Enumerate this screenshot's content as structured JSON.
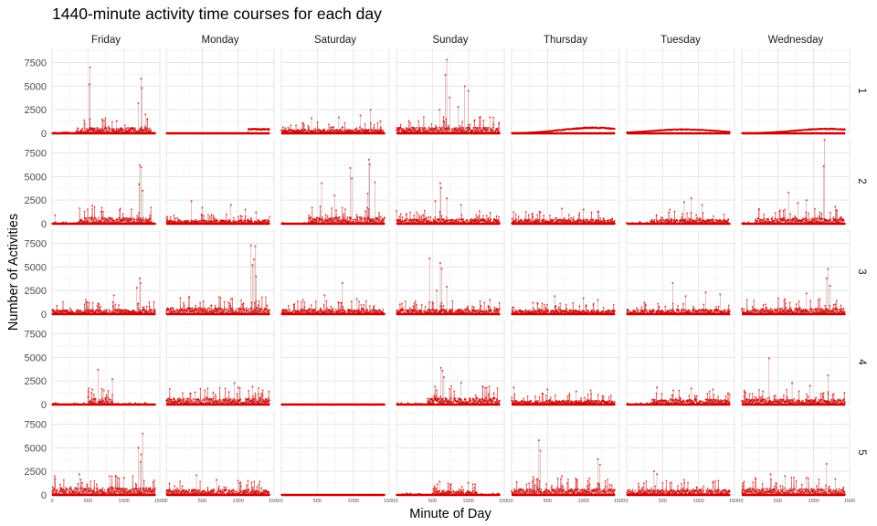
{
  "chart_data": {
    "type": "scatter",
    "title": "1440-minute activity time courses for each day",
    "xlabel": "Minute of Day",
    "ylabel": "Number of Activities",
    "xlim": [
      0,
      1500
    ],
    "ylim": [
      0,
      9000
    ],
    "x_ticks": [
      0,
      500,
      1000,
      1500
    ],
    "y_ticks": [
      0,
      2500,
      5000,
      7500
    ],
    "y_tick_labels": [
      "0",
      "2500",
      "5000",
      "7500"
    ],
    "grid": true,
    "point_color": "#cc0000",
    "columns": [
      "Friday",
      "Monday",
      "Saturday",
      "Sunday",
      "Thursday",
      "Tuesday",
      "Wednesday"
    ],
    "rows": [
      "1",
      "2",
      "3",
      "4",
      "5"
    ],
    "panels": [
      {
        "row": "1",
        "col": "Friday",
        "kind": "active",
        "onset": 330,
        "offset": 1380,
        "base": 350,
        "spikes": [
          [
            530,
            7000
          ],
          [
            520,
            5200
          ],
          [
            1240,
            5800
          ],
          [
            1250,
            4800
          ],
          [
            1200,
            3200
          ],
          [
            1300,
            2000
          ],
          [
            700,
            1500
          ],
          [
            900,
            1300
          ]
        ]
      },
      {
        "row": "1",
        "col": "Monday",
        "kind": "flat",
        "level": 0,
        "rise_start": 1140,
        "rise_level": 450
      },
      {
        "row": "1",
        "col": "Saturday",
        "kind": "active",
        "onset": 0,
        "offset": 1440,
        "base": 250,
        "spikes": [
          [
            1240,
            2500
          ],
          [
            420,
            1600
          ],
          [
            800,
            1700
          ],
          [
            1100,
            1900
          ],
          [
            1380,
            1300
          ]
        ]
      },
      {
        "row": "1",
        "col": "Sunday",
        "kind": "active",
        "onset": 0,
        "offset": 1440,
        "base": 380,
        "spikes": [
          [
            700,
            7800
          ],
          [
            680,
            6200
          ],
          [
            950,
            5000
          ],
          [
            1000,
            4500
          ],
          [
            740,
            3800
          ],
          [
            860,
            2800
          ],
          [
            600,
            2500
          ],
          [
            1300,
            1700
          ]
        ]
      },
      {
        "row": "1",
        "col": "Thursday",
        "kind": "smooth",
        "peak": 600,
        "peak_at": 1150
      },
      {
        "row": "1",
        "col": "Tuesday",
        "kind": "smooth",
        "peak": 420,
        "peak_at": 800
      },
      {
        "row": "1",
        "col": "Wednesday",
        "kind": "smooth",
        "peak": 480,
        "peak_at": 1200
      },
      {
        "row": "2",
        "col": "Friday",
        "kind": "active",
        "onset": 380,
        "offset": 1380,
        "base": 380,
        "spikes": [
          [
            1220,
            6200
          ],
          [
            1240,
            6000
          ],
          [
            1210,
            4200
          ],
          [
            1260,
            3500
          ],
          [
            560,
            1900
          ],
          [
            950,
            1600
          ],
          [
            40,
            900
          ]
        ]
      },
      {
        "row": "2",
        "col": "Monday",
        "kind": "active",
        "onset": 0,
        "offset": 1440,
        "base": 220,
        "spikes": [
          [
            350,
            2400
          ],
          [
            900,
            2000
          ],
          [
            500,
            1700
          ],
          [
            1100,
            1500
          ],
          [
            1250,
            1200
          ]
        ]
      },
      {
        "row": "2",
        "col": "Saturday",
        "kind": "active",
        "onset": 380,
        "offset": 1440,
        "base": 420,
        "spikes": [
          [
            1220,
            6800
          ],
          [
            1230,
            6300
          ],
          [
            960,
            5900
          ],
          [
            980,
            4800
          ],
          [
            560,
            4300
          ],
          [
            1300,
            4400
          ],
          [
            740,
            3000
          ],
          [
            1200,
            3200
          ]
        ]
      },
      {
        "row": "2",
        "col": "Sunday",
        "kind": "active",
        "onset": 0,
        "offset": 1440,
        "base": 300,
        "spikes": [
          [
            610,
            4300
          ],
          [
            620,
            3800
          ],
          [
            700,
            2700
          ],
          [
            540,
            2400
          ],
          [
            900,
            2000
          ]
        ]
      },
      {
        "row": "2",
        "col": "Thursday",
        "kind": "active",
        "onset": 0,
        "offset": 1440,
        "base": 280,
        "spikes": [
          [
            700,
            1600
          ],
          [
            1000,
            1500
          ],
          [
            1200,
            1300
          ],
          [
            400,
            1200
          ]
        ]
      },
      {
        "row": "2",
        "col": "Tuesday",
        "kind": "active",
        "onset": 320,
        "offset": 1420,
        "base": 280,
        "spikes": [
          [
            900,
            2700
          ],
          [
            800,
            2300
          ],
          [
            1050,
            2000
          ],
          [
            600,
            1500
          ]
        ]
      },
      {
        "row": "2",
        "col": "Wednesday",
        "kind": "active",
        "onset": 180,
        "offset": 1420,
        "base": 350,
        "spikes": [
          [
            1150,
            8900
          ],
          [
            1140,
            6100
          ],
          [
            650,
            3300
          ],
          [
            900,
            2500
          ],
          [
            780,
            2200
          ],
          [
            1300,
            1800
          ]
        ]
      },
      {
        "row": "3",
        "col": "Friday",
        "kind": "active",
        "onset": 0,
        "offset": 1440,
        "base": 300,
        "spikes": [
          [
            1220,
            3800
          ],
          [
            1230,
            3300
          ],
          [
            1180,
            2800
          ],
          [
            860,
            2000
          ],
          [
            470,
            1500
          ]
        ]
      },
      {
        "row": "3",
        "col": "Monday",
        "kind": "active",
        "onset": 0,
        "offset": 1440,
        "base": 400,
        "spikes": [
          [
            1180,
            7300
          ],
          [
            1240,
            7200
          ],
          [
            1220,
            5800
          ],
          [
            1200,
            5200
          ],
          [
            1250,
            4000
          ],
          [
            320,
            1800
          ],
          [
            900,
            1600
          ]
        ]
      },
      {
        "row": "3",
        "col": "Saturday",
        "kind": "active",
        "onset": 0,
        "offset": 1440,
        "base": 300,
        "spikes": [
          [
            850,
            3300
          ],
          [
            600,
            2000
          ],
          [
            1050,
            1600
          ],
          [
            300,
            1500
          ]
        ]
      },
      {
        "row": "3",
        "col": "Sunday",
        "kind": "active",
        "onset": 0,
        "offset": 1440,
        "base": 300,
        "spikes": [
          [
            460,
            5900
          ],
          [
            610,
            5400
          ],
          [
            630,
            4800
          ],
          [
            700,
            2900
          ],
          [
            560,
            2500
          ],
          [
            1300,
            1500
          ]
        ]
      },
      {
        "row": "3",
        "col": "Thursday",
        "kind": "active",
        "onset": 0,
        "offset": 1440,
        "base": 260,
        "spikes": [
          [
            600,
            1900
          ],
          [
            1000,
            1700
          ],
          [
            1200,
            1500
          ],
          [
            300,
            1200
          ]
        ]
      },
      {
        "row": "3",
        "col": "Tuesday",
        "kind": "active",
        "onset": 0,
        "offset": 1440,
        "base": 300,
        "spikes": [
          [
            640,
            3300
          ],
          [
            1100,
            2300
          ],
          [
            1300,
            2100
          ],
          [
            820,
            1900
          ]
        ]
      },
      {
        "row": "3",
        "col": "Wednesday",
        "kind": "active",
        "onset": 0,
        "offset": 1440,
        "base": 360,
        "spikes": [
          [
            1200,
            4800
          ],
          [
            1180,
            3800
          ],
          [
            1230,
            3000
          ],
          [
            900,
            2200
          ],
          [
            600,
            1600
          ]
        ]
      },
      {
        "row": "4",
        "col": "Friday",
        "kind": "active",
        "onset": 500,
        "offset": 840,
        "base": 420,
        "spikes": [
          [
            640,
            3700
          ],
          [
            840,
            2700
          ],
          [
            560,
            1600
          ],
          [
            720,
            1500
          ]
        ]
      },
      {
        "row": "4",
        "col": "Monday",
        "kind": "active",
        "onset": 0,
        "offset": 1440,
        "base": 380,
        "spikes": [
          [
            950,
            2300
          ],
          [
            1200,
            1900
          ],
          [
            1000,
            1800
          ],
          [
            400,
            1300
          ]
        ]
      },
      {
        "row": "4",
        "col": "Saturday",
        "kind": "flat",
        "level": 0
      },
      {
        "row": "4",
        "col": "Sunday",
        "kind": "active",
        "onset": 430,
        "offset": 1440,
        "base": 420,
        "spikes": [
          [
            620,
            3900
          ],
          [
            640,
            3600
          ],
          [
            660,
            2900
          ],
          [
            900,
            2300
          ],
          [
            1200,
            1900
          ]
        ]
      },
      {
        "row": "4",
        "col": "Thursday",
        "kind": "active",
        "onset": 0,
        "offset": 1440,
        "base": 260,
        "spikes": [
          [
            30,
            1800
          ],
          [
            500,
            1600
          ],
          [
            1100,
            1500
          ],
          [
            900,
            1400
          ]
        ]
      },
      {
        "row": "4",
        "col": "Tuesday",
        "kind": "active",
        "onset": 350,
        "offset": 1440,
        "base": 330,
        "spikes": [
          [
            420,
            1800
          ],
          [
            900,
            1700
          ],
          [
            1200,
            1600
          ],
          [
            650,
            1500
          ]
        ]
      },
      {
        "row": "4",
        "col": "Wednesday",
        "kind": "active",
        "onset": 0,
        "offset": 1440,
        "base": 340,
        "spikes": [
          [
            380,
            4900
          ],
          [
            1200,
            3100
          ],
          [
            700,
            2300
          ],
          [
            950,
            2000
          ]
        ]
      },
      {
        "row": "5",
        "col": "Friday",
        "kind": "active",
        "onset": 0,
        "offset": 1440,
        "base": 450,
        "spikes": [
          [
            1260,
            6500
          ],
          [
            1200,
            5000
          ],
          [
            1240,
            4300
          ],
          [
            1230,
            3500
          ],
          [
            380,
            2200
          ],
          [
            800,
            2000
          ],
          [
            1000,
            1800
          ]
        ]
      },
      {
        "row": "5",
        "col": "Monday",
        "kind": "active",
        "onset": 0,
        "offset": 1440,
        "base": 330,
        "spikes": [
          [
            420,
            2100
          ],
          [
            700,
            1600
          ],
          [
            1000,
            1500
          ],
          [
            1300,
            1400
          ]
        ]
      },
      {
        "row": "5",
        "col": "Saturday",
        "kind": "flat",
        "level": 0
      },
      {
        "row": "5",
        "col": "Sunday",
        "kind": "active",
        "onset": 500,
        "offset": 1120,
        "base": 260,
        "spikes": [
          [
            600,
            1400
          ],
          [
            1000,
            1300
          ],
          [
            720,
            1200
          ]
        ]
      },
      {
        "row": "5",
        "col": "Thursday",
        "kind": "active",
        "onset": 0,
        "offset": 1440,
        "base": 380,
        "spikes": [
          [
            380,
            5800
          ],
          [
            400,
            4700
          ],
          [
            1200,
            3800
          ],
          [
            1230,
            3200
          ],
          [
            700,
            2000
          ],
          [
            300,
            1900
          ]
        ]
      },
      {
        "row": "5",
        "col": "Tuesday",
        "kind": "active",
        "onset": 0,
        "offset": 1440,
        "base": 330,
        "spikes": [
          [
            380,
            2500
          ],
          [
            420,
            2200
          ],
          [
            800,
            1600
          ],
          [
            1200,
            1400
          ]
        ]
      },
      {
        "row": "5",
        "col": "Wednesday",
        "kind": "active",
        "onset": 0,
        "offset": 1440,
        "base": 400,
        "spikes": [
          [
            1180,
            3300
          ],
          [
            400,
            2200
          ],
          [
            600,
            2000
          ],
          [
            900,
            1800
          ],
          [
            1300,
            1700
          ]
        ]
      }
    ]
  }
}
